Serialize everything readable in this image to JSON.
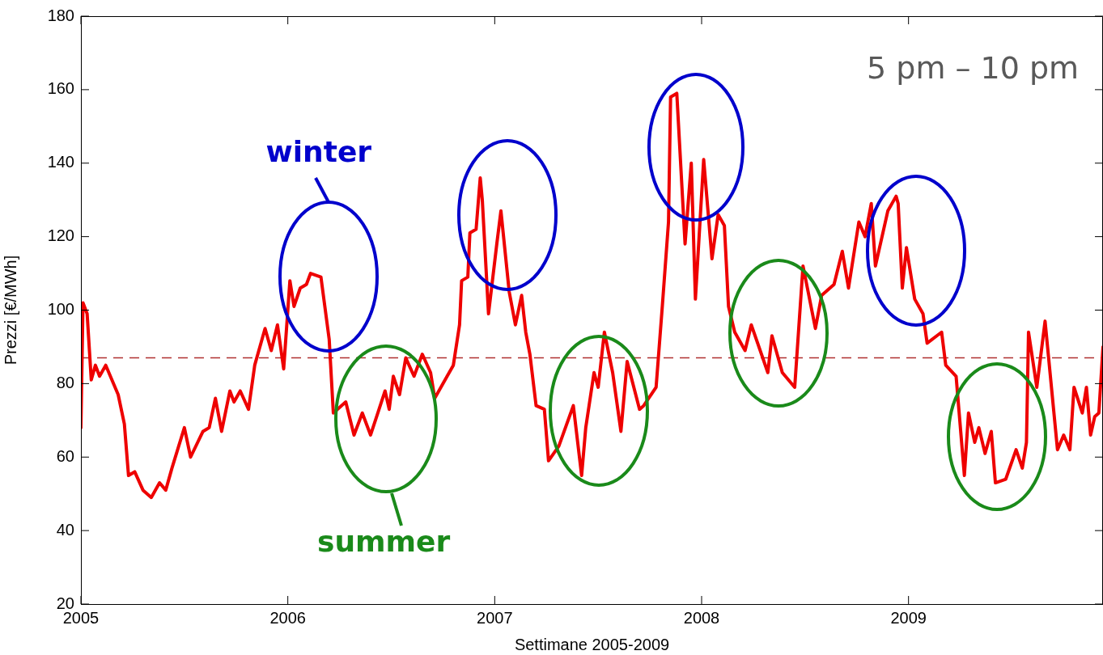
{
  "chart_data": {
    "type": "line",
    "xlabel": "Settimane 2005-2009",
    "ylabel": "Prezzi [€/MWh]",
    "x": [
      2005.0,
      2005.01,
      2005.03,
      2005.05,
      2005.07,
      2005.09,
      2005.12,
      2005.18,
      2005.21,
      2005.23,
      2005.26,
      2005.3,
      2005.34,
      2005.38,
      2005.41,
      2005.44,
      2005.5,
      2005.53,
      2005.59,
      2005.62,
      2005.65,
      2005.68,
      2005.72,
      2005.74,
      2005.77,
      2005.81,
      2005.84,
      2005.89,
      2005.92,
      2005.95,
      2005.98,
      2006.01,
      2006.03,
      2006.06,
      2006.09,
      2006.11,
      2006.16,
      2006.2,
      2006.22,
      2006.28,
      2006.32,
      2006.36,
      2006.4,
      2006.47,
      2006.49,
      2006.51,
      2006.54,
      2006.57,
      2006.61,
      2006.65,
      2006.69,
      2006.71,
      2006.77,
      2006.8,
      2006.83,
      2006.84,
      2006.87,
      2006.88,
      2006.91,
      2006.93,
      2006.94,
      2006.97,
      2007.01,
      2007.03,
      2007.07,
      2007.1,
      2007.13,
      2007.15,
      2007.17,
      2007.2,
      2007.24,
      2007.26,
      2007.31,
      2007.38,
      2007.42,
      2007.44,
      2007.48,
      2007.5,
      2007.53,
      2007.57,
      2007.61,
      2007.64,
      2007.7,
      2007.72,
      2007.78,
      2007.81,
      2007.84,
      2007.85,
      2007.88,
      2007.92,
      2007.95,
      2007.97,
      2008.01,
      2008.05,
      2008.08,
      2008.11,
      2008.13,
      2008.16,
      2008.21,
      2008.24,
      2008.32,
      2008.34,
      2008.39,
      2008.45,
      2008.49,
      2008.55,
      2008.58,
      2008.64,
      2008.68,
      2008.71,
      2008.76,
      2008.79,
      2008.82,
      2008.84,
      2008.9,
      2008.94,
      2008.95,
      2008.97,
      2008.99,
      2009.03,
      2009.07,
      2009.09,
      2009.16,
      2009.18,
      2009.23,
      2009.27,
      2009.29,
      2009.32,
      2009.34,
      2009.37,
      2009.4,
      2009.42,
      2009.47,
      2009.52,
      2009.55,
      2009.57,
      2009.58,
      2009.62,
      2009.66,
      2009.72,
      2009.75,
      2009.78,
      2009.8,
      2009.84,
      2009.86,
      2009.88,
      2009.9,
      2009.92,
      2009.94
    ],
    "series": [
      {
        "color": "#ee0000",
        "values": [
          68,
          102,
          99,
          81,
          85,
          82,
          85,
          77,
          69,
          55,
          56,
          51,
          49,
          53,
          51,
          57,
          68,
          60,
          67,
          68,
          76,
          67,
          78,
          75,
          78,
          73,
          85,
          95,
          89,
          96,
          84,
          108,
          101,
          106,
          107,
          110,
          109,
          92,
          72,
          75,
          66,
          72,
          66,
          78,
          73,
          82,
          77,
          87,
          82,
          88,
          83,
          76,
          82,
          85,
          96,
          108,
          109,
          121,
          122,
          136,
          130,
          99,
          118,
          127,
          105,
          96,
          104,
          94,
          88,
          74,
          73,
          59,
          63,
          74,
          55,
          68,
          83,
          79,
          94,
          83,
          67,
          86,
          73,
          74,
          79,
          101,
          124,
          158,
          159,
          118,
          140,
          103,
          141,
          114,
          126,
          123,
          101,
          94,
          89,
          96,
          83,
          93,
          83,
          79,
          112,
          95,
          104,
          107,
          116,
          106,
          124,
          120,
          129,
          112,
          127,
          131,
          129,
          106,
          117,
          103,
          99,
          91,
          94,
          85,
          82,
          55,
          72,
          64,
          68,
          61,
          67,
          53,
          54,
          62,
          57,
          64,
          94,
          79,
          97,
          62,
          66,
          62,
          79,
          72,
          79,
          66,
          71,
          72,
          90
        ]
      }
    ],
    "xlim": [
      2005,
      2009.94
    ],
    "xticks": [
      2005,
      2006,
      2007,
      2008,
      2009
    ],
    "ylim": [
      20,
      180
    ],
    "yticks": [
      20,
      40,
      60,
      80,
      100,
      120,
      140,
      160,
      180
    ],
    "ref_lines": [
      {
        "axis": "y",
        "value": 87,
        "color": "#b03030",
        "line_style": "dashed"
      }
    ],
    "annotations": [
      "5 pm – 10 pm",
      "winter",
      "summer"
    ],
    "grid": false,
    "legend": false,
    "marker": "none",
    "line_style": "solid"
  }
}
